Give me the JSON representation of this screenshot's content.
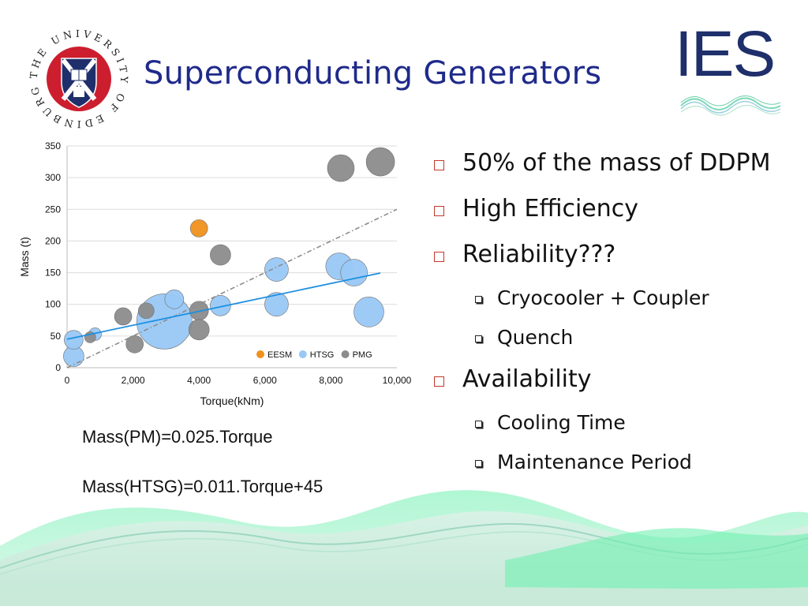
{
  "slide": {
    "title": "Superconducting Generators",
    "university_logo": {
      "ring_text": "THE UNIVERSITY OF EDINBURGH",
      "colors": {
        "ring": "#cc1e2e",
        "shield": "#1f2f6b"
      }
    },
    "ies_logo": {
      "text": "IES",
      "color": "#1f2f6b",
      "wave_color": "#7fd9b8"
    },
    "formulas": [
      "Mass(PM)=0.025.Torque",
      "Mass(HTSG)=0.011.Torque+45"
    ],
    "bullets": [
      {
        "text": "50% of the mass of DDPM",
        "children": []
      },
      {
        "text": "High Efficiency",
        "children": []
      },
      {
        "text": "Reliability???",
        "children": [
          "Cryocooler + Coupler",
          "Quench"
        ]
      },
      {
        "text": "Availability",
        "children": [
          "Cooling Time",
          "Maintenance Period"
        ]
      }
    ],
    "colors": {
      "title": "#1f2a8a",
      "bullet_box": "#c0392b",
      "wave_light": "#c8ecd9",
      "wave_bright": "#6ff0b0"
    }
  },
  "chart_data": {
    "type": "scatter",
    "title": "",
    "xlabel": "Torque(kNm)",
    "ylabel": "Mass (t)",
    "xlim": [
      0,
      10000
    ],
    "ylim": [
      0,
      350
    ],
    "x_ticks": [
      "0",
      "2,000",
      "4,000",
      "6,000",
      "8,000",
      "10,000"
    ],
    "x_tick_values": [
      0,
      2000,
      4000,
      6000,
      8000,
      10000
    ],
    "y_ticks": [
      "0",
      "50",
      "100",
      "150",
      "200",
      "250",
      "300",
      "350"
    ],
    "y_tick_values": [
      0,
      50,
      100,
      150,
      200,
      250,
      300,
      350
    ],
    "grid": "horizontal",
    "legend_position": "bottom-right",
    "series": [
      {
        "name": "EESM",
        "color": "#f0901e",
        "points": [
          {
            "x": 4000,
            "y": 220,
            "size": 11
          }
        ]
      },
      {
        "name": "HTSG",
        "color": "#99c8f6",
        "points": [
          {
            "x": 200,
            "y": 18,
            "size": 13
          },
          {
            "x": 200,
            "y": 44,
            "size": 12
          },
          {
            "x": 850,
            "y": 53,
            "size": 8
          },
          {
            "x": 2950,
            "y": 73,
            "size": 35
          },
          {
            "x": 3250,
            "y": 108,
            "size": 12
          },
          {
            "x": 4650,
            "y": 98,
            "size": 13
          },
          {
            "x": 6350,
            "y": 100,
            "size": 15
          },
          {
            "x": 6350,
            "y": 155,
            "size": 15
          },
          {
            "x": 8250,
            "y": 160,
            "size": 17
          },
          {
            "x": 8700,
            "y": 150,
            "size": 17
          },
          {
            "x": 9150,
            "y": 88,
            "size": 19
          }
        ]
      },
      {
        "name": "PMG",
        "color": "#8c8c8c",
        "points": [
          {
            "x": 700,
            "y": 48,
            "size": 7
          },
          {
            "x": 1700,
            "y": 81,
            "size": 11
          },
          {
            "x": 2050,
            "y": 37,
            "size": 11
          },
          {
            "x": 2400,
            "y": 90,
            "size": 10
          },
          {
            "x": 4000,
            "y": 90,
            "size": 12
          },
          {
            "x": 4000,
            "y": 60,
            "size": 13
          },
          {
            "x": 4650,
            "y": 178,
            "size": 13
          },
          {
            "x": 8300,
            "y": 315,
            "size": 17
          },
          {
            "x": 9500,
            "y": 325,
            "size": 18
          }
        ]
      }
    ],
    "trendlines": [
      {
        "name": "Mass(PM)",
        "equation": "0.025*Torque",
        "slope": 0.025,
        "intercept": 0,
        "x_range": [
          0,
          10000
        ],
        "color": "#8c8c8c",
        "style": "dash-dot"
      },
      {
        "name": "Mass(HTSG)",
        "equation": "0.011*Torque+45",
        "slope": 0.011,
        "intercept": 45,
        "x_range": [
          0,
          9500
        ],
        "color": "#1e90e0",
        "style": "solid"
      }
    ]
  }
}
